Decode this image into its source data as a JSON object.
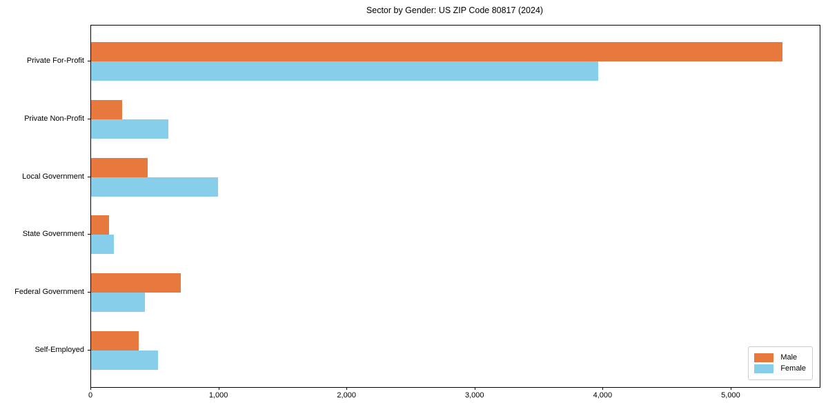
{
  "title": "Sector by Gender: US ZIP Code 80817 (2024)",
  "chart_data": {
    "type": "bar",
    "orientation": "horizontal",
    "title": "Sector by Gender: US ZIP Code 80817 (2024)",
    "categories": [
      "Private For-Profit",
      "Private Non-Profit",
      "Local Government",
      "State Government",
      "Federal Government",
      "Self-Employed"
    ],
    "series": [
      {
        "name": "Male",
        "color": "#e8793e",
        "values": [
          5400,
          240,
          440,
          140,
          700,
          370
        ]
      },
      {
        "name": "Female",
        "color": "#87ceeb",
        "values": [
          3960,
          605,
          990,
          180,
          420,
          520
        ]
      }
    ],
    "xlabel": "",
    "ylabel": "",
    "xlim": [
      0,
      5690
    ],
    "xticks": [
      0,
      1000,
      2000,
      3000,
      4000,
      5000
    ],
    "xtick_labels": [
      "0",
      "1,000",
      "2,000",
      "3,000",
      "4,000",
      "5,000"
    ],
    "grid": false,
    "legend_position": "lower right",
    "legend": {
      "entries": [
        {
          "label": "Male",
          "color": "#e8793e"
        },
        {
          "label": "Female",
          "color": "#87ceeb"
        }
      ]
    }
  }
}
